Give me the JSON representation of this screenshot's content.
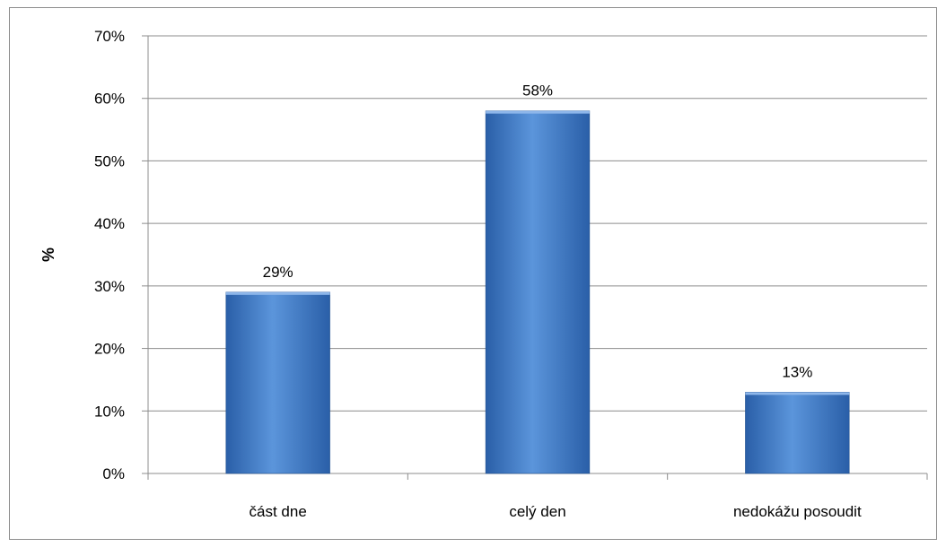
{
  "chart_data": {
    "type": "bar",
    "categories": [
      "část dne",
      "celý den",
      "nedokážu posoudit"
    ],
    "values": [
      29,
      58,
      13
    ],
    "data_labels": [
      "29%",
      "58%",
      "13%"
    ],
    "ylabel": "%",
    "xlabel": "",
    "ylim": [
      0,
      70
    ],
    "yticks": [
      0,
      10,
      20,
      30,
      40,
      50,
      60,
      70
    ],
    "ytick_labels": [
      "0%",
      "10%",
      "20%",
      "30%",
      "40%",
      "50%",
      "60%",
      "70%"
    ],
    "grid": "horizontal",
    "legend": "none",
    "colors": {
      "bar_light": "#5b95db",
      "bar_dark": "#2a5fa8",
      "grid": "#8c8c8c",
      "axis": "#8c8c8c"
    }
  }
}
